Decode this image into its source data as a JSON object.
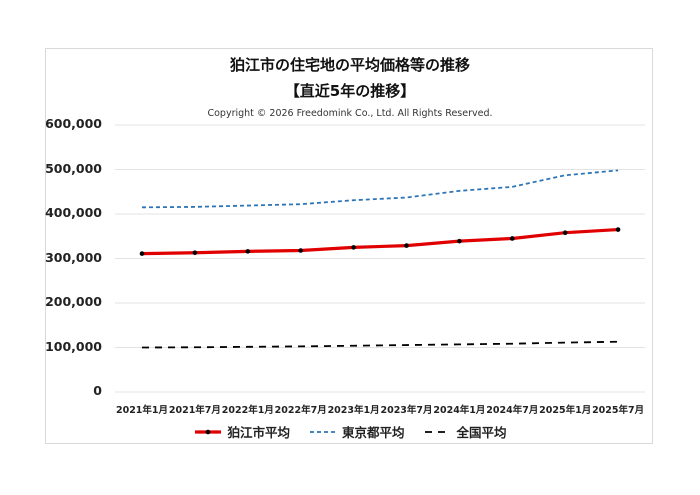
{
  "chart_data": {
    "type": "line",
    "title": "狛江市の住宅地の平均価格等の推移",
    "subtitle": "【直近5年の推移】",
    "annotation": "Copyright © 2026 Freedomink Co., Ltd. All Rights Reserved.",
    "xlabel": "",
    "ylabel": "",
    "ylim": [
      0,
      600000
    ],
    "yticks": [
      "600,000",
      "500,000",
      "400,000",
      "300,000",
      "200,000",
      "100,000",
      "0"
    ],
    "grid": true,
    "legend_position": "bottom",
    "categories": [
      "2021年1月",
      "2021年7月",
      "2022年1月",
      "2022年7月",
      "2023年1月",
      "2023年7月",
      "2024年1月",
      "2024年7月",
      "2025年1月",
      "2025年7月"
    ],
    "series": [
      {
        "name": "狛江市平均",
        "color": "#e00000",
        "style": "solid-markers",
        "values": [
          311000,
          313000,
          316000,
          318000,
          325000,
          329000,
          339000,
          345000,
          358000,
          365000
        ]
      },
      {
        "name": "東京都平均",
        "color": "#2e75b6",
        "style": "dashed",
        "values": [
          415000,
          416000,
          419000,
          422000,
          431000,
          437000,
          452000,
          461000,
          487000,
          498000
        ]
      },
      {
        "name": "全国平均",
        "color": "#000000",
        "style": "long-dashed",
        "values": [
          100000,
          100500,
          101500,
          102500,
          104000,
          105500,
          107000,
          108500,
          111000,
          113000
        ]
      }
    ]
  }
}
